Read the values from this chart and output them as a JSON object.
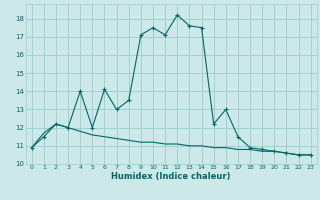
{
  "title": "",
  "xlabel": "Humidex (Indice chaleur)",
  "bg_color": "#cce8e8",
  "grid_color": "#99cccc",
  "line_color": "#006666",
  "x_main": [
    0,
    1,
    2,
    3,
    4,
    5,
    6,
    7,
    8,
    9,
    10,
    11,
    12,
    13,
    14,
    15,
    16,
    17,
    18,
    19,
    20,
    21,
    22,
    23
  ],
  "y_main": [
    10.9,
    11.5,
    12.2,
    12.0,
    14.0,
    12.0,
    14.1,
    13.0,
    13.5,
    17.1,
    17.5,
    17.1,
    18.2,
    17.6,
    17.5,
    12.2,
    13.0,
    11.5,
    10.9,
    10.8,
    10.7,
    10.6,
    10.5,
    10.5
  ],
  "y_smooth": [
    10.9,
    11.7,
    12.2,
    12.0,
    11.8,
    11.6,
    11.5,
    11.4,
    11.3,
    11.2,
    11.2,
    11.1,
    11.1,
    11.0,
    11.0,
    10.9,
    10.9,
    10.8,
    10.8,
    10.7,
    10.7,
    10.6,
    10.5,
    10.5
  ],
  "xlim": [
    -0.5,
    23.5
  ],
  "ylim": [
    10,
    18.8
  ],
  "yticks": [
    10,
    11,
    12,
    13,
    14,
    15,
    16,
    17,
    18
  ],
  "xticks": [
    0,
    1,
    2,
    3,
    4,
    5,
    6,
    7,
    8,
    9,
    10,
    11,
    12,
    13,
    14,
    15,
    16,
    17,
    18,
    19,
    20,
    21,
    22,
    23
  ]
}
